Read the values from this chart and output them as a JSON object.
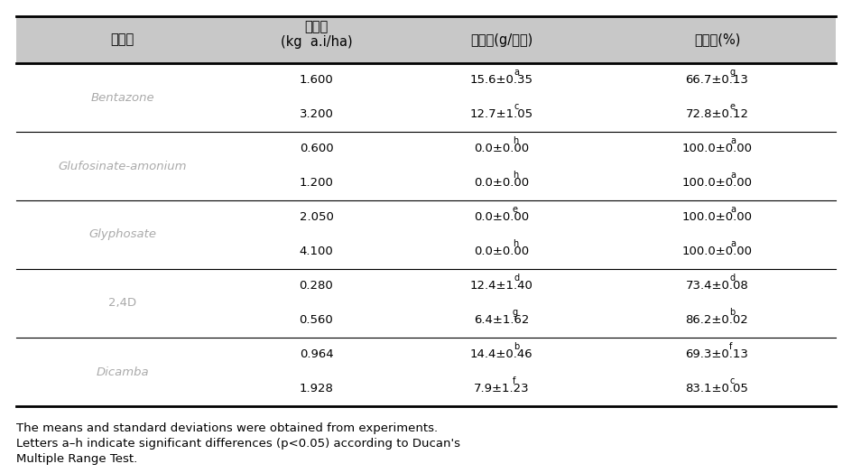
{
  "header": [
    "제초제",
    "처리량\n(kg  a.i/ha)",
    "건물중(g/포트)",
    "방제가(%)"
  ],
  "rows": [
    [
      "Bentazone",
      "1.600",
      "15.6±0.35",
      "a",
      "66.7±0.13",
      "g"
    ],
    [
      "Bentazone",
      "3.200",
      "12.7±1.05",
      "c",
      "72.8±0.12",
      "e"
    ],
    [
      "Glufosinate-amonium",
      "0.600",
      "0.0±0.00",
      "h",
      "100.0±0.00",
      "a"
    ],
    [
      "Glufosinate-amonium",
      "1.200",
      "0.0±0.00",
      "h",
      "100.0±0.00",
      "a"
    ],
    [
      "Glyphosate",
      "2.050",
      "0.0±0.00",
      "e",
      "100.0±0.00",
      "a"
    ],
    [
      "Glyphosate",
      "4.100",
      "0.0±0.00",
      "h",
      "100.0±0.00",
      "a"
    ],
    [
      "2,4D",
      "0.280",
      "12.4±1.40",
      "d",
      "73.4±0.08",
      "d"
    ],
    [
      "2,4D",
      "0.560",
      "6.4±1.62",
      "g",
      "86.2±0.02",
      "b"
    ],
    [
      "Dicamba",
      "0.964",
      "14.4±0.46",
      "b",
      "69.3±0.13",
      "f"
    ],
    [
      "Dicamba",
      "1.928",
      "7.9±1.23",
      "f",
      "83.1±0.05",
      "c"
    ]
  ],
  "groups": [
    [
      "Bentazone",
      0,
      1
    ],
    [
      "Glufosinate-amonium",
      2,
      3
    ],
    [
      "Glyphosate",
      4,
      5
    ],
    [
      "2,4D",
      6,
      7
    ],
    [
      "Dicamba",
      8,
      9
    ]
  ],
  "footnote_line1": "The means and standard deviations were obtained from experiments.",
  "footnote_line2": "Letters a–h indicate significant differences (p<0.05) according to Ducan's",
  "footnote_line3": "Multiple Range Test.",
  "header_bg": "#c8c8c8",
  "bg_white": "#ffffff",
  "text_color": "#000000",
  "gray_text": "#aaaaaa",
  "font_size": 9.5,
  "header_font_size": 10.5,
  "footnote_font_size": 9.5
}
